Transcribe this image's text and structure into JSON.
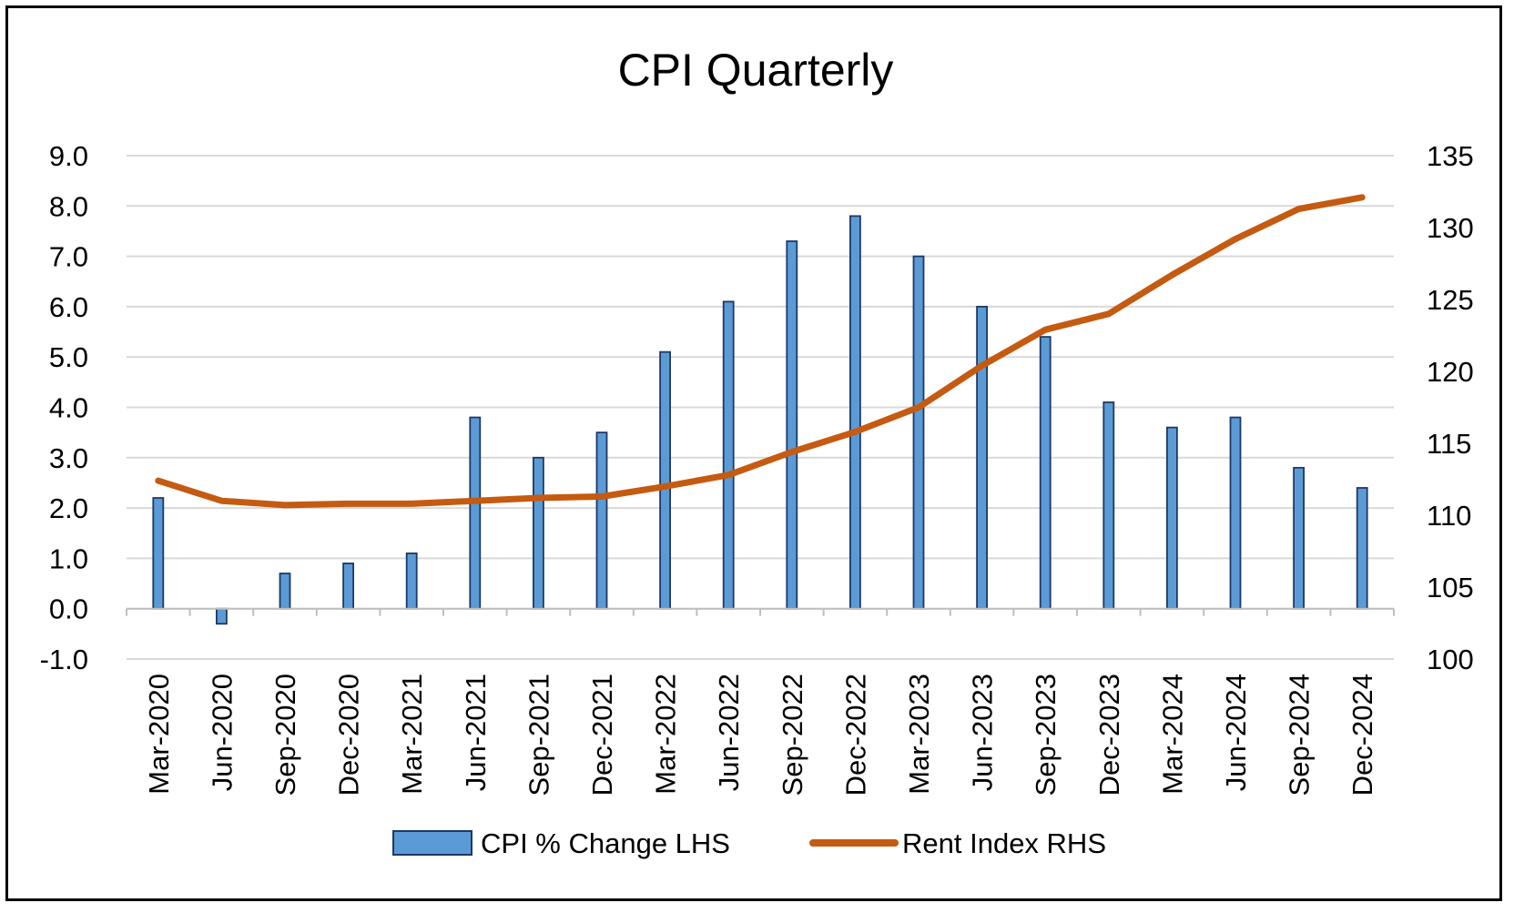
{
  "chart_data": {
    "type": "bar+line",
    "title": "CPI Quarterly",
    "categories": [
      "Mar-2020",
      "Jun-2020",
      "Sep-2020",
      "Dec-2020",
      "Mar-2021",
      "Jun-2021",
      "Sep-2021",
      "Dec-2021",
      "Mar-2022",
      "Jun-2022",
      "Sep-2022",
      "Dec-2022",
      "Mar-2023",
      "Jun-2023",
      "Sep-2023",
      "Dec-2023",
      "Mar-2024",
      "Jun-2024",
      "Sep-2024",
      "Dec-2024"
    ],
    "series": [
      {
        "name": "CPI % Change LHS",
        "type": "bar",
        "axis": "left",
        "color": "#5B9BD5",
        "values": [
          2.2,
          -0.3,
          0.7,
          0.9,
          1.1,
          3.8,
          3.0,
          3.5,
          5.1,
          6.1,
          7.3,
          7.8,
          7.0,
          6.0,
          5.4,
          4.1,
          3.6,
          3.8,
          2.8,
          2.4
        ]
      },
      {
        "name": "Rent Index RHS",
        "type": "line",
        "axis": "right",
        "color": "#C55A11",
        "values": [
          112.4,
          111.0,
          110.7,
          110.8,
          110.8,
          111.0,
          111.2,
          111.3,
          112.0,
          112.8,
          114.4,
          115.8,
          117.5,
          120.4,
          122.9,
          124.0,
          126.7,
          129.2,
          131.3,
          132.1
        ]
      }
    ],
    "y_left": {
      "min": -1.0,
      "max": 9.0,
      "step": 1.0,
      "tick_labels": [
        "-1.0",
        "0.0",
        "1.0",
        "2.0",
        "3.0",
        "4.0",
        "5.0",
        "6.0",
        "7.0",
        "8.0",
        "9.0"
      ]
    },
    "y_right": {
      "min": 100,
      "max": 135,
      "step": 5,
      "tick_labels": [
        "100",
        "105",
        "110",
        "115",
        "120",
        "125",
        "130",
        "135"
      ]
    },
    "grid": true,
    "legend_position": "bottom",
    "xlabel": "",
    "ylabel": ""
  }
}
